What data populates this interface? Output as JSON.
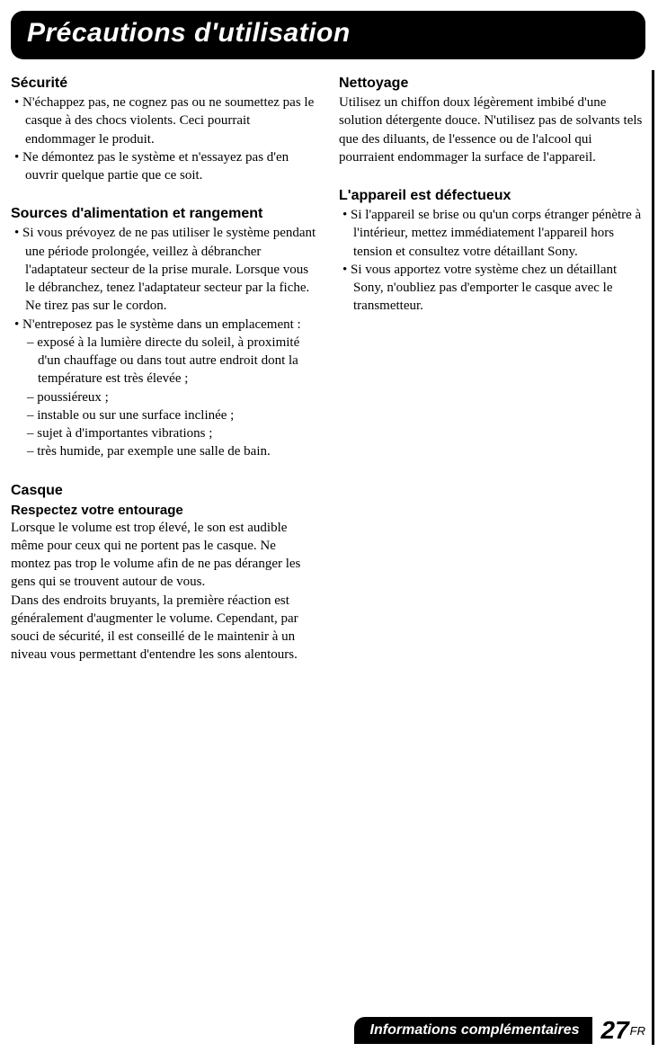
{
  "header": {
    "title": "Précautions d'utilisation"
  },
  "left": {
    "securite": {
      "title": "Sécurité",
      "items": [
        "N'échappez pas, ne cognez pas ou ne soumettez pas le casque à des chocs violents. Ceci pourrait endommager le produit.",
        "Ne démontez pas le système et n'essayez pas d'en ouvrir quelque partie que ce soit."
      ]
    },
    "sources": {
      "title": "Sources d'alimentation et rangement",
      "items": [
        "Si vous prévoyez de ne pas utiliser le système pendant une période prolongée, veillez à débrancher l'adaptateur secteur de la prise murale. Lorsque vous le débranchez, tenez l'adaptateur secteur par la fiche. Ne tirez pas sur le cordon.",
        "N'entreposez pas le système dans un emplacement :"
      ],
      "subitems": [
        "exposé à la lumière directe du soleil, à proximité d'un chauffage ou dans tout autre endroit dont la température est très élevée ;",
        "poussiéreux ;",
        "instable ou sur une surface inclinée ;",
        "sujet à d'importantes vibrations ;",
        "très humide, par exemple une salle de bain."
      ]
    },
    "casque": {
      "title": "Casque",
      "subtitle": "Respectez votre entourage",
      "para": "Lorsque le volume est trop élevé, le son est audible même pour ceux qui ne portent pas le casque. Ne montez pas trop le volume afin de ne pas déranger les gens qui se trouvent autour de vous.\nDans des endroits bruyants, la première réaction est généralement d'augmenter le volume. Cependant, par souci de sécurité, il est conseillé de le maintenir à un niveau vous permettant d'entendre les sons alentours."
    }
  },
  "right": {
    "nettoyage": {
      "title": "Nettoyage",
      "para": "Utilisez un chiffon doux légèrement imbibé d'une solution détergente douce. N'utilisez pas de solvants tels que des diluants, de l'essence ou de l'alcool qui pourraient endommager la surface de l'appareil."
    },
    "defect": {
      "title": "L'appareil est défectueux",
      "items": [
        "Si l'appareil se brise ou qu'un corps étranger pénètre à l'intérieur, mettez immédiatement l'appareil hors tension et consultez votre détaillant Sony.",
        "Si vous apportez votre système chez un détaillant Sony, n'oubliez pas d'emporter le casque avec le transmetteur."
      ]
    }
  },
  "footer": {
    "label": "Informations complémentaires",
    "page": "27",
    "suffix": "FR"
  }
}
